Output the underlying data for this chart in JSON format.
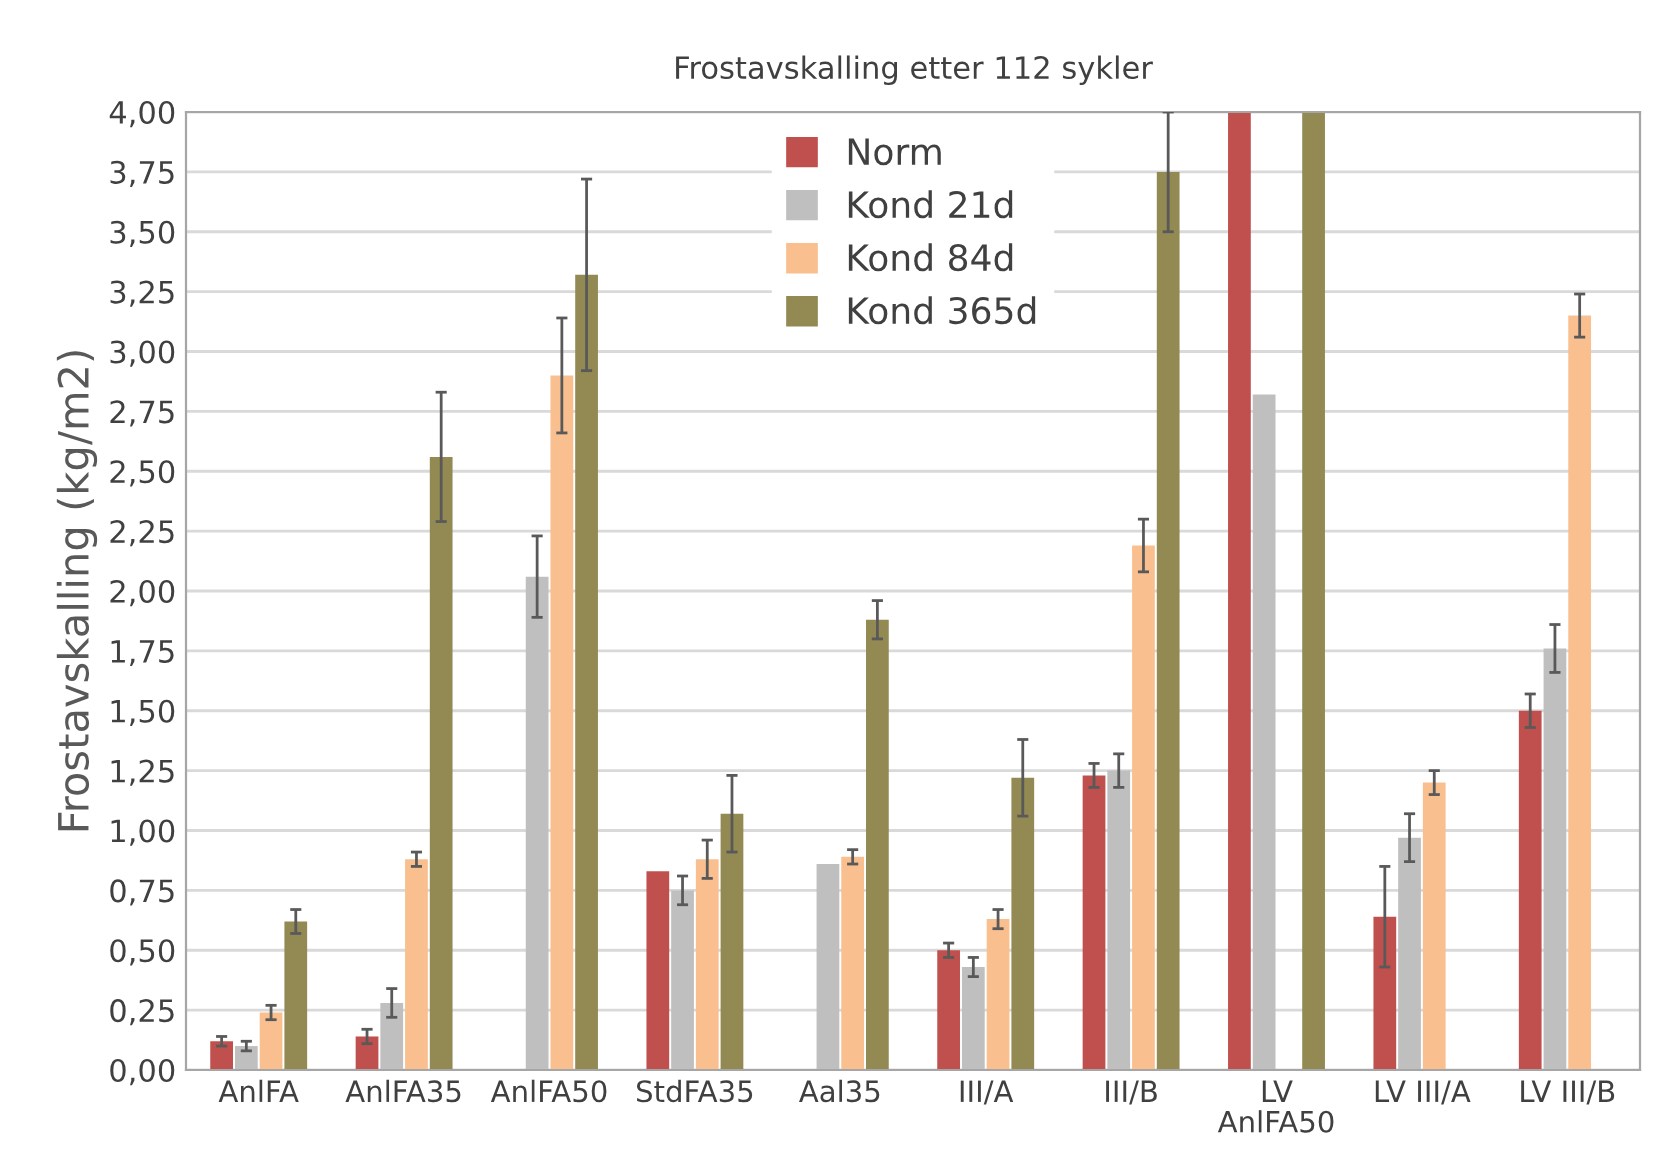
{
  "chart_data": {
    "type": "bar",
    "title": "Frostavskalling etter 112 sykler",
    "ylabel": "Frostavskalling (kg/m2)",
    "categories": [
      "AnlFA",
      "AnlFA35",
      "AnlFA50",
      "StdFA35",
      "Aal35",
      "III/A",
      "III/B",
      "LV\nAnlFA50",
      "LV III/A",
      "LV III/B"
    ],
    "series": [
      {
        "name": "Norm",
        "color": "#c0504d",
        "values": [
          0.12,
          0.14,
          null,
          0.83,
          null,
          0.5,
          1.23,
          4.0,
          0.64,
          1.5
        ],
        "errors": [
          0.02,
          0.03,
          null,
          null,
          null,
          0.03,
          0.05,
          null,
          0.21,
          0.07
        ]
      },
      {
        "name": "Kond 21d",
        "color": "#bfbfbf",
        "values": [
          0.1,
          0.28,
          2.06,
          0.75,
          0.86,
          0.43,
          1.25,
          2.82,
          0.97,
          1.76
        ],
        "errors": [
          0.02,
          0.06,
          0.17,
          0.06,
          null,
          0.04,
          0.07,
          null,
          0.1,
          0.1
        ]
      },
      {
        "name": "Kond 84d",
        "color": "#f9bf8f",
        "values": [
          0.24,
          0.88,
          2.9,
          0.88,
          0.89,
          0.63,
          2.19,
          null,
          1.2,
          3.15
        ],
        "errors": [
          0.03,
          0.03,
          0.24,
          0.08,
          0.03,
          0.04,
          0.11,
          null,
          0.05,
          0.09
        ]
      },
      {
        "name": "Kond 365d",
        "color": "#938953",
        "values": [
          0.62,
          2.56,
          3.32,
          1.07,
          1.88,
          1.22,
          3.75,
          4.0,
          null,
          null
        ],
        "errors": [
          0.05,
          0.27,
          0.4,
          0.16,
          0.08,
          0.16,
          0.25,
          null,
          null,
          null
        ]
      }
    ],
    "ylim": [
      0,
      4
    ],
    "yticks": [
      {
        "value": 0,
        "label": "0,00"
      },
      {
        "value": 0.25,
        "label": "0,25"
      },
      {
        "value": 0.5,
        "label": "0,50"
      },
      {
        "value": 0.75,
        "label": "0,75"
      },
      {
        "value": 1,
        "label": "1,00"
      },
      {
        "value": 1.25,
        "label": "1,25"
      },
      {
        "value": 1.5,
        "label": "1,50"
      },
      {
        "value": 1.75,
        "label": "1,75"
      },
      {
        "value": 2,
        "label": "2,00"
      },
      {
        "value": 2.25,
        "label": "2,25"
      },
      {
        "value": 2.5,
        "label": "2,50"
      },
      {
        "value": 2.75,
        "label": "2,75"
      },
      {
        "value": 3,
        "label": "3,00"
      },
      {
        "value": 3.25,
        "label": "3,25"
      },
      {
        "value": 3.5,
        "label": "3,50"
      },
      {
        "value": 3.75,
        "label": "3,75"
      },
      {
        "value": 4,
        "label": "4,00"
      }
    ],
    "grid": "y",
    "legend": "top"
  }
}
